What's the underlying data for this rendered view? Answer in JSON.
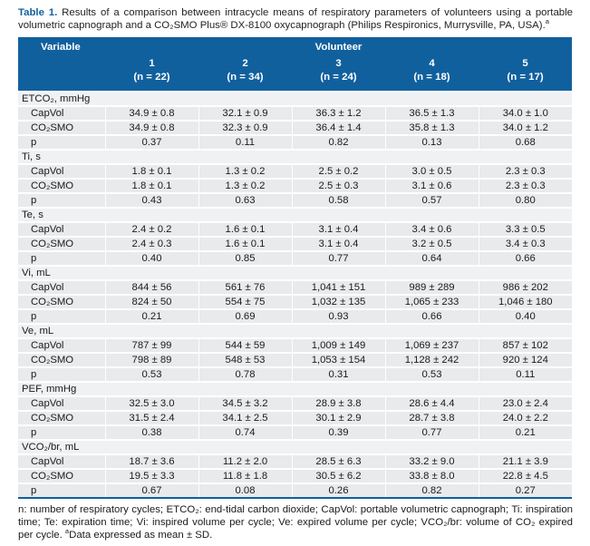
{
  "colors": {
    "header_blue": "#11609e",
    "row_gray": "#e8eaec",
    "section_gray": "#f0f1f3",
    "separator_white": "#ffffff"
  },
  "caption": {
    "label": "Table 1.",
    "text": " Results of a comparison between intracycle means of respiratory parameters of volunteers using a portable volumetric capnograph and a CO₂SMO Plus® DX-8100 oxycapnograph (Philips Respironics, Murrysville, PA, USA).",
    "footnote_marker": "a"
  },
  "table": {
    "header": {
      "variable_label": "Variable",
      "group_label": "Volunteer",
      "columns": [
        {
          "number": "1",
          "n": "(n = 22)"
        },
        {
          "number": "2",
          "n": "(n = 34)"
        },
        {
          "number": "3",
          "n": "(n = 24)"
        },
        {
          "number": "4",
          "n": "(n = 18)"
        },
        {
          "number": "5",
          "n": "(n = 17)"
        }
      ]
    },
    "sections": [
      {
        "label": "ETCO₂, mmHg",
        "rows": [
          {
            "label": "CapVol",
            "values": [
              "34.9 ± 0.8",
              "32.1 ± 0.9",
              "36.3 ± 1.2",
              "36.5 ± 1.3",
              "34.0 ± 1.0"
            ]
          },
          {
            "label": "CO₂SMO",
            "values": [
              "34.9 ± 0.8",
              "32.3 ± 0.9",
              "36.4 ± 1.4",
              "35.8 ± 1.3",
              "34.0 ± 1.2"
            ]
          },
          {
            "label": "p",
            "values": [
              "0.37",
              "0.11",
              "0.82",
              "0.13",
              "0.68"
            ]
          }
        ]
      },
      {
        "label": "Ti, s",
        "rows": [
          {
            "label": "CapVol",
            "values": [
              "1.8 ± 0.1",
              "1.3 ± 0.2",
              "2.5 ± 0.2",
              "3.0 ± 0.5",
              "2.3 ± 0.3"
            ]
          },
          {
            "label": "CO₂SMO",
            "values": [
              "1.8 ± 0.1",
              "1.3 ± 0.2",
              "2.5 ± 0.3",
              "3.1 ± 0.6",
              "2.3 ± 0.3"
            ]
          },
          {
            "label": "p",
            "values": [
              "0.43",
              "0.63",
              "0.58",
              "0.57",
              "0.80"
            ]
          }
        ]
      },
      {
        "label": "Te, s",
        "rows": [
          {
            "label": "CapVol",
            "values": [
              "2.4 ± 0.2",
              "1.6 ± 0.1",
              "3.1 ± 0.4",
              "3.4 ± 0.6",
              "3.3 ± 0.5"
            ]
          },
          {
            "label": "CO₂SMO",
            "values": [
              "2.4 ± 0.3",
              "1.6 ± 0.1",
              "3.1 ± 0.4",
              "3.2 ± 0.5",
              "3.4 ± 0.3"
            ]
          },
          {
            "label": "p",
            "values": [
              "0.40",
              "0.85",
              "0.77",
              "0.64",
              "0.66"
            ]
          }
        ]
      },
      {
        "label": "Vi, mL",
        "rows": [
          {
            "label": "CapVol",
            "values": [
              "844 ± 56",
              "561 ± 76",
              "1,041 ± 151",
              "989 ± 289",
              "986 ± 202"
            ]
          },
          {
            "label": "CO₂SMO",
            "values": [
              "824 ± 50",
              "554 ± 75",
              "1,032 ± 135",
              "1,065 ± 233",
              "1,046 ± 180"
            ]
          },
          {
            "label": "p",
            "values": [
              "0.21",
              "0.69",
              "0.93",
              "0.66",
              "0.40"
            ]
          }
        ]
      },
      {
        "label": "Ve, mL",
        "rows": [
          {
            "label": "CapVol",
            "values": [
              "787 ± 99",
              "544 ± 59",
              "1,009 ± 149",
              "1,069 ± 237",
              "857 ± 102"
            ]
          },
          {
            "label": "CO₂SMO",
            "values": [
              "798 ± 89",
              "548 ± 53",
              "1,053 ± 154",
              "1,128 ± 242",
              "920 ± 124"
            ]
          },
          {
            "label": "p",
            "values": [
              "0.53",
              "0.78",
              "0.31",
              "0.53",
              "0.11"
            ]
          }
        ]
      },
      {
        "label": "PEF, mmHg",
        "rows": [
          {
            "label": "CapVol",
            "values": [
              "32.5 ± 3.0",
              "34.5 ± 3.2",
              "28.9 ± 3.8",
              "28.6 ± 4.4",
              "23.0 ± 2.4"
            ]
          },
          {
            "label": "CO₂SMO",
            "values": [
              "31.5 ± 2.4",
              "34.1 ± 2.5",
              "30.1 ± 2.9",
              "28.7 ± 3.8",
              "24.0 ± 2.2"
            ]
          },
          {
            "label": "p",
            "values": [
              "0.38",
              "0.74",
              "0.39",
              "0.77",
              "0.21"
            ]
          }
        ]
      },
      {
        "label": "VCO₂/br, mL",
        "rows": [
          {
            "label": "CapVol",
            "values": [
              "18.7 ± 3.6",
              "11.2 ± 2.0",
              "28.5 ± 6.3",
              "33.2 ± 9.0",
              "21.1 ± 3.9"
            ]
          },
          {
            "label": "CO₂SMO",
            "values": [
              "19.5 ± 3.3",
              "11.8 ± 1.8",
              "30.5 ± 6.2",
              "33.8 ± 8.0",
              "22.8 ± 4.5"
            ]
          },
          {
            "label": "p",
            "values": [
              "0.67",
              "0.08",
              "0.26",
              "0.82",
              "0.27"
            ]
          }
        ]
      }
    ]
  },
  "footnote": {
    "text": "n: number of respiratory cycles; ETCO₂: end-tidal carbon dioxide; CapVol: portable volumetric capnograph; Ti: inspiration time; Te: expiration time; Vi: inspired volume per cycle; Ve: expired volume per cycle; VCO₂/br: volume of CO₂ expired per cycle. ",
    "marker": "a",
    "text2": "Data expressed as mean ± SD."
  }
}
